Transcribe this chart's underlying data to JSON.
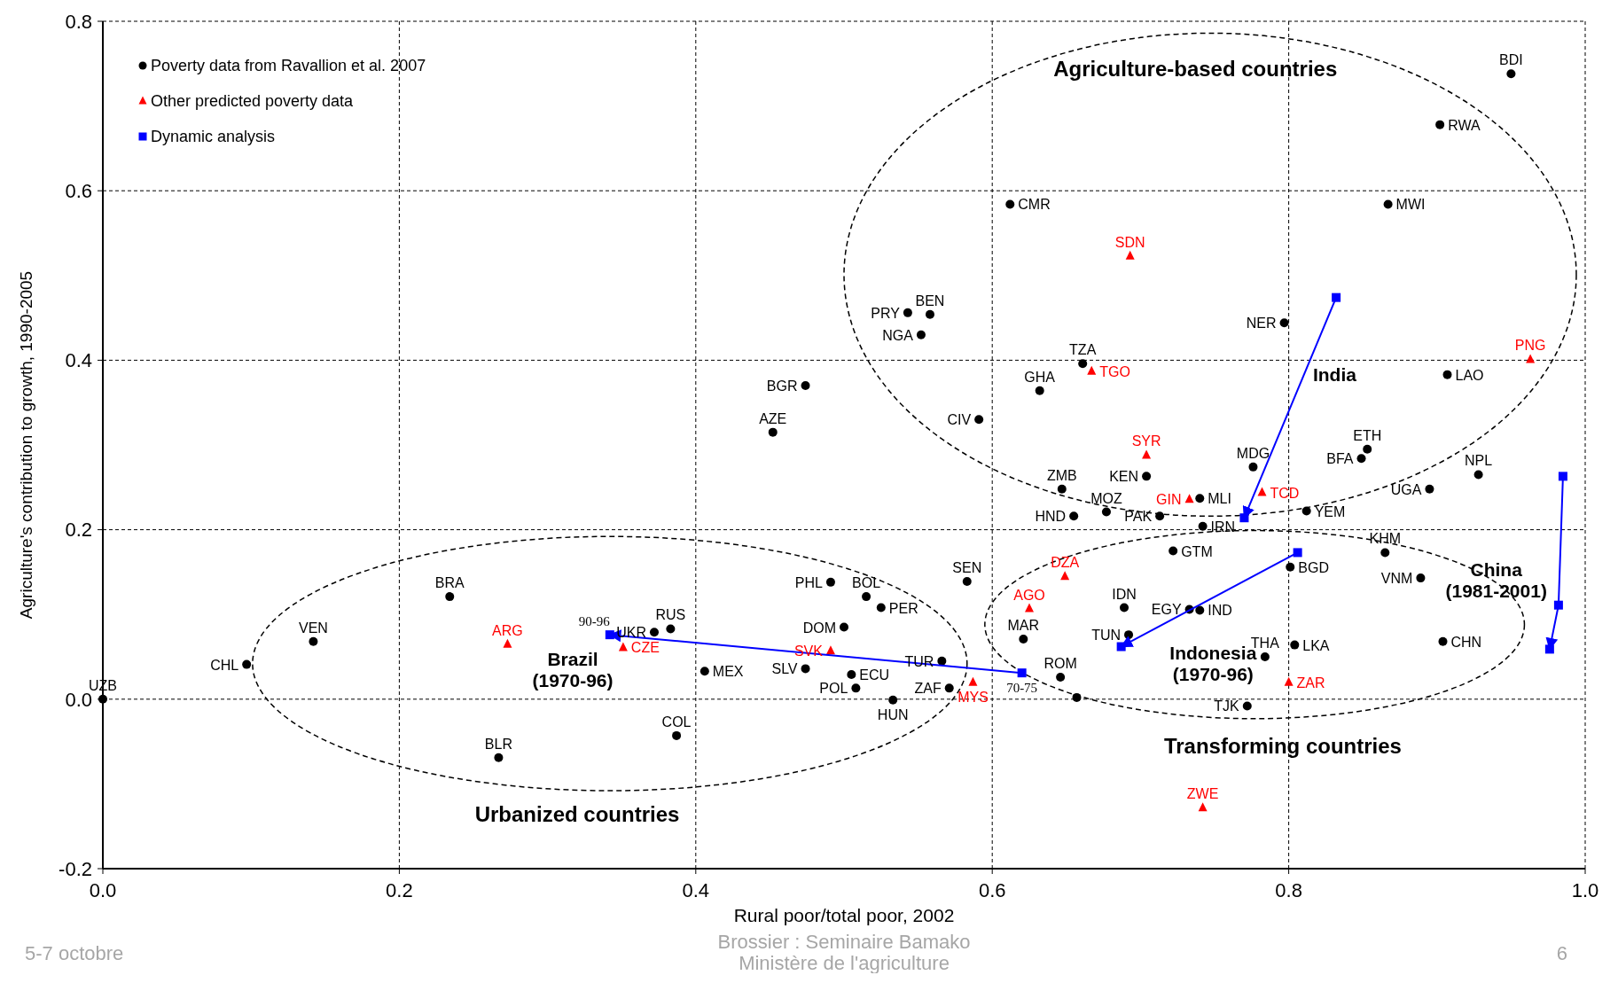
{
  "chart_data": {
    "type": "scatter",
    "xlabel": "Rural poor/total poor, 2002",
    "ylabel": "Agriculture's contribution to growth, 1990-2005",
    "xlim": [
      0,
      1
    ],
    "ylim": [
      -0.2,
      0.8
    ],
    "xticks": [
      {
        "value": 0,
        "label": "0.0"
      },
      0.2,
      0.4,
      0.6,
      0.8,
      {
        "value": 1,
        "label": "1.0"
      }
    ],
    "yticks": [
      -0.2,
      {
        "value": 0,
        "label": "0.0"
      },
      0.2,
      0.4,
      0.6,
      0.8
    ],
    "grid": true,
    "legend": "top left",
    "series": [
      {
        "name": "Poverty data from Ravallion et al. 2007",
        "marker": "circle",
        "color": "#000000",
        "x": [
          0.95,
          0.902,
          0.867,
          0.612,
          0.797,
          0.907,
          0.543,
          0.558,
          0.552,
          0.661,
          0.474,
          0.632,
          0.452,
          0.591,
          0.853,
          0.849,
          0.776,
          0.928,
          0.704,
          0.647,
          0.74,
          0.895,
          0.677,
          0.655,
          0.713,
          0.742,
          0.812,
          0.722,
          0.865,
          0.801,
          0.889,
          0.583,
          0.491,
          0.515,
          0.525,
          0.689,
          0.733,
          0.74,
          0.234,
          0.383,
          0.372,
          0.5,
          0.142,
          0.621,
          0.692,
          0.904,
          0.804,
          0.097,
          0.784,
          0.566,
          0.406,
          0.474,
          0.505,
          0.646,
          0.571,
          0.508,
          0.0,
          0.533,
          0.772,
          0.387,
          0.267,
          0.657
        ],
        "values": [
          0.738,
          0.678,
          0.584,
          0.584,
          0.444,
          0.383,
          0.456,
          0.454,
          0.43,
          0.396,
          0.37,
          0.364,
          0.315,
          0.33,
          0.295,
          0.284,
          0.274,
          0.265,
          0.263,
          0.248,
          0.237,
          0.248,
          0.221,
          0.216,
          0.216,
          0.204,
          0.222,
          0.175,
          0.173,
          0.156,
          0.143,
          0.139,
          0.138,
          0.121,
          0.108,
          0.108,
          0.106,
          0.105,
          0.121,
          0.083,
          0.079,
          0.085,
          0.068,
          0.071,
          0.076,
          0.068,
          0.064,
          0.041,
          0.05,
          0.045,
          0.033,
          0.036,
          0.029,
          0.026,
          0.013,
          0.013,
          0.0,
          -0.001,
          -0.008,
          -0.043,
          -0.069,
          0.002
        ]
      },
      {
        "name": "Other predicted poverty data",
        "marker": "triangle",
        "color": "#ff0000",
        "x": [
          0.693,
          0.963,
          0.667,
          0.704,
          0.733,
          0.782,
          0.649,
          0.625,
          0.273,
          0.351,
          0.491,
          0.587,
          0.8,
          0.742
        ],
        "values": [
          0.523,
          0.401,
          0.387,
          0.288,
          0.236,
          0.244,
          0.145,
          0.107,
          0.065,
          0.061,
          0.057,
          0.02,
          0.02,
          -0.128
        ]
      },
      {
        "name": "Dynamic analysis",
        "marker": "square",
        "color": "#0000ff",
        "x": [
          0.342,
          0.62,
          0.832,
          0.77,
          0.806,
          0.687,
          0.985,
          0.982,
          0.976
        ],
        "values": [
          0.076,
          0.031,
          0.474,
          0.214,
          0.173,
          0.062,
          0.263,
          0.111,
          0.059
        ]
      },
      {
        "type": "line",
        "marker": "none",
        "color": "#0000ff",
        "x": [
          0.62,
          0.342
        ],
        "values": [
          0.031,
          0.076
        ]
      },
      {
        "type": "line",
        "marker": "none",
        "color": "#0000ff",
        "x": [
          0.832,
          0.77
        ],
        "values": [
          0.474,
          0.214
        ]
      },
      {
        "type": "line",
        "marker": "none",
        "color": "#0000ff",
        "x": [
          0.806,
          0.687
        ],
        "values": [
          0.173,
          0.062
        ]
      },
      {
        "type": "line",
        "marker": "none",
        "color": "#0000ff",
        "x": [
          0.985,
          0.982,
          0.976
        ],
        "values": [
          0.263,
          0.111,
          0.059
        ]
      }
    ],
    "annotations": [
      {
        "text": "BDI",
        "x": 0.95,
        "y": 0.738
      },
      {
        "text": "RWA",
        "x": 0.902,
        "y": 0.678
      },
      {
        "text": "MWI",
        "x": 0.867,
        "y": 0.584
      },
      {
        "text": "CMR",
        "x": 0.612,
        "y": 0.584
      },
      {
        "text": "NER",
        "x": 0.797,
        "y": 0.444
      },
      {
        "text": "LAO",
        "x": 0.907,
        "y": 0.383
      },
      {
        "text": "PRY",
        "x": 0.543,
        "y": 0.456
      },
      {
        "text": "BEN",
        "x": 0.558,
        "y": 0.454
      },
      {
        "text": "NGA",
        "x": 0.552,
        "y": 0.43
      },
      {
        "text": "TZA",
        "x": 0.661,
        "y": 0.396
      },
      {
        "text": "BGR",
        "x": 0.474,
        "y": 0.37
      },
      {
        "text": "GHA",
        "x": 0.632,
        "y": 0.364
      },
      {
        "text": "AZE",
        "x": 0.452,
        "y": 0.315
      },
      {
        "text": "CIV",
        "x": 0.591,
        "y": 0.33
      },
      {
        "text": "ETH",
        "x": 0.853,
        "y": 0.295
      },
      {
        "text": "BFA",
        "x": 0.849,
        "y": 0.284
      },
      {
        "text": "MDG",
        "x": 0.776,
        "y": 0.274
      },
      {
        "text": "NPL",
        "x": 0.928,
        "y": 0.265
      },
      {
        "text": "KEN",
        "x": 0.704,
        "y": 0.263
      },
      {
        "text": "ZMB",
        "x": 0.647,
        "y": 0.248
      },
      {
        "text": "MLI",
        "x": 0.74,
        "y": 0.237
      },
      {
        "text": "UGA",
        "x": 0.895,
        "y": 0.248
      },
      {
        "text": "MOZ",
        "x": 0.677,
        "y": 0.221
      },
      {
        "text": "HND",
        "x": 0.655,
        "y": 0.216
      },
      {
        "text": "PAK",
        "x": 0.713,
        "y": 0.216
      },
      {
        "text": "IRN",
        "x": 0.742,
        "y": 0.204
      },
      {
        "text": "YEM",
        "x": 0.812,
        "y": 0.222
      },
      {
        "text": "GTM",
        "x": 0.722,
        "y": 0.175
      },
      {
        "text": "KHM",
        "x": 0.865,
        "y": 0.173
      },
      {
        "text": "BGD",
        "x": 0.801,
        "y": 0.156
      },
      {
        "text": "VNM",
        "x": 0.889,
        "y": 0.143
      },
      {
        "text": "SEN",
        "x": 0.583,
        "y": 0.139
      },
      {
        "text": "PHL",
        "x": 0.491,
        "y": 0.138
      },
      {
        "text": "BOL",
        "x": 0.515,
        "y": 0.121
      },
      {
        "text": "PER",
        "x": 0.525,
        "y": 0.108
      },
      {
        "text": "IDN",
        "x": 0.689,
        "y": 0.108
      },
      {
        "text": "EGY",
        "x": 0.733,
        "y": 0.106
      },
      {
        "text": "IND",
        "x": 0.74,
        "y": 0.105
      },
      {
        "text": "BRA",
        "x": 0.234,
        "y": 0.121
      },
      {
        "text": "RUS",
        "x": 0.383,
        "y": 0.083
      },
      {
        "text": "UKR",
        "x": 0.372,
        "y": 0.079
      },
      {
        "text": "DOM",
        "x": 0.5,
        "y": 0.085
      },
      {
        "text": "VEN",
        "x": 0.142,
        "y": 0.068
      },
      {
        "text": "MAR",
        "x": 0.621,
        "y": 0.071
      },
      {
        "text": "TUN",
        "x": 0.692,
        "y": 0.076
      },
      {
        "text": "CHN",
        "x": 0.904,
        "y": 0.068
      },
      {
        "text": "LKA",
        "x": 0.804,
        "y": 0.064
      },
      {
        "text": "CHL",
        "x": 0.097,
        "y": 0.041
      },
      {
        "text": "THA",
        "x": 0.784,
        "y": 0.05
      },
      {
        "text": "TUR",
        "x": 0.566,
        "y": 0.045
      },
      {
        "text": "MEX",
        "x": 0.406,
        "y": 0.033
      },
      {
        "text": "SLV",
        "x": 0.474,
        "y": 0.036
      },
      {
        "text": "ECU",
        "x": 0.505,
        "y": 0.029
      },
      {
        "text": "ROM",
        "x": 0.646,
        "y": 0.026
      },
      {
        "text": "ZAF",
        "x": 0.571,
        "y": 0.013
      },
      {
        "text": "POL",
        "x": 0.508,
        "y": 0.013
      },
      {
        "text": "UZB",
        "x": 0.0,
        "y": 0.0
      },
      {
        "text": "HUN",
        "x": 0.533,
        "y": -0.001
      },
      {
        "text": "TJK",
        "x": 0.772,
        "y": -0.008
      },
      {
        "text": "COL",
        "x": 0.387,
        "y": -0.043
      },
      {
        "text": "BLR",
        "x": 0.267,
        "y": -0.069
      },
      {
        "text": "SDN",
        "x": 0.693,
        "y": 0.523
      },
      {
        "text": "PNG",
        "x": 0.963,
        "y": 0.401
      },
      {
        "text": "TGO",
        "x": 0.667,
        "y": 0.387
      },
      {
        "text": "SYR",
        "x": 0.704,
        "y": 0.288
      },
      {
        "text": "GIN",
        "x": 0.733,
        "y": 0.236
      },
      {
        "text": "TCD",
        "x": 0.782,
        "y": 0.244
      },
      {
        "text": "DZA",
        "x": 0.649,
        "y": 0.145
      },
      {
        "text": "AGO",
        "x": 0.625,
        "y": 0.107
      },
      {
        "text": "ARG",
        "x": 0.273,
        "y": 0.065
      },
      {
        "text": "CZE",
        "x": 0.351,
        "y": 0.061
      },
      {
        "text": "SVK",
        "x": 0.491,
        "y": 0.057
      },
      {
        "text": "MYS",
        "x": 0.587,
        "y": 0.02
      },
      {
        "text": "ZAR",
        "x": 0.8,
        "y": 0.02
      },
      {
        "text": "ZWE",
        "x": 0.742,
        "y": -0.128
      },
      {
        "text": "90-96",
        "x": 0.342,
        "y": 0.076
      },
      {
        "text": "70-75",
        "x": 0.62,
        "y": 0.031
      },
      "Agriculture-based countries",
      "Transforming countries",
      "Urbanized countries",
      "India",
      "China (1981-2001)",
      "Brazil (1970-96)",
      "Indonesia (1970-96)",
      "5-7 octobre",
      "Brossier : Seminaire Bamako",
      "Ministère de l'agriculture",
      "6"
    ]
  }
}
